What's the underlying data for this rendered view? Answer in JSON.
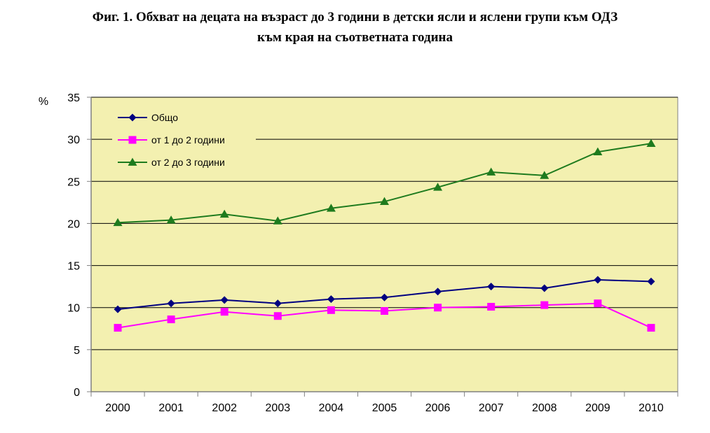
{
  "title_line1": "Фиг. 1. Обхват на децата на възраст до 3 години в детски ясли и яслени групи към ОДЗ",
  "title_line2": "към края на съответната година",
  "chart_data": {
    "type": "line",
    "title": "Фиг. 1. Обхват на децата на възраст до 3 години в детски ясли и яслени групи към ОДЗ към края на съответната година",
    "ylabel": "%",
    "xlabel": "",
    "ylim": [
      0,
      35
    ],
    "yticks": [
      0,
      5,
      10,
      15,
      20,
      25,
      30,
      35
    ],
    "grid": true,
    "legend": "top-left",
    "categories": [
      "2000",
      "2001",
      "2002",
      "2003",
      "2004",
      "2005",
      "2006",
      "2007",
      "2008",
      "2009",
      "2010"
    ],
    "series": [
      {
        "name": "Общо",
        "color": "#000080",
        "marker": "diamond",
        "values": [
          9.8,
          10.5,
          10.9,
          10.5,
          11.0,
          11.2,
          11.9,
          12.5,
          12.3,
          13.3,
          13.1
        ]
      },
      {
        "name": "от 1 до 2 години",
        "color": "#ff00ff",
        "marker": "square",
        "values": [
          7.6,
          8.6,
          9.5,
          9.0,
          9.7,
          9.6,
          10.0,
          10.1,
          10.3,
          10.5,
          7.6
        ]
      },
      {
        "name": "от 2 до 3 години",
        "color": "#1e7b1e",
        "marker": "triangle",
        "values": [
          20.1,
          20.4,
          21.1,
          20.3,
          21.8,
          22.6,
          24.3,
          26.1,
          25.7,
          28.5,
          29.5
        ]
      }
    ],
    "plot_background": "#f3f0b0"
  }
}
